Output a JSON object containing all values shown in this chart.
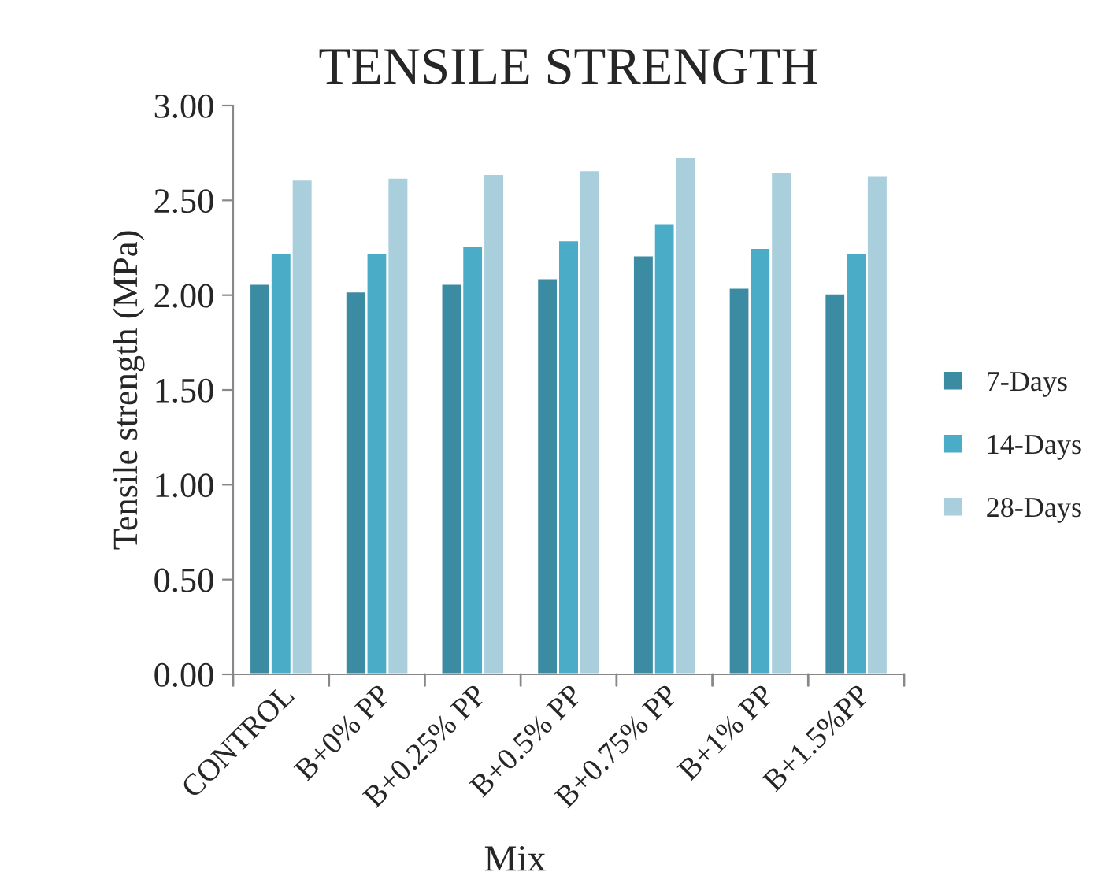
{
  "chart_data": {
    "type": "bar",
    "title": "TENSILE STRENGTH",
    "xlabel": "Mix",
    "ylabel": "Tensile strength (MPa)",
    "categories": [
      "CONTROL",
      "B+0% PP",
      "B+0.25% PP",
      "B+0.5% PP",
      "B+0.75% PP",
      "B+1% PP",
      "B+1.5%PP"
    ],
    "series": [
      {
        "name": "7-Days",
        "color": "#3b8ba3",
        "values": [
          2.06,
          2.02,
          2.06,
          2.09,
          2.21,
          2.04,
          2.01
        ]
      },
      {
        "name": "14-Days",
        "color": "#4aacc6",
        "values": [
          2.22,
          2.22,
          2.26,
          2.29,
          2.38,
          2.25,
          2.22
        ]
      },
      {
        "name": "28-Days",
        "color": "#a9cfdd",
        "values": [
          2.61,
          2.62,
          2.64,
          2.66,
          2.73,
          2.65,
          2.63
        ]
      }
    ],
    "ylim": [
      0,
      3
    ],
    "yticks": [
      {
        "value": 0,
        "label": "0.00"
      },
      {
        "value": 0.5,
        "label": "0.50"
      },
      {
        "value": 1,
        "label": "1.00"
      },
      {
        "value": 1.5,
        "label": "1.50"
      },
      {
        "value": 2,
        "label": "2.00"
      },
      {
        "value": 2.5,
        "label": "2.50"
      },
      {
        "value": 3,
        "label": "3.00"
      }
    ],
    "grid": false,
    "legend": "right"
  }
}
